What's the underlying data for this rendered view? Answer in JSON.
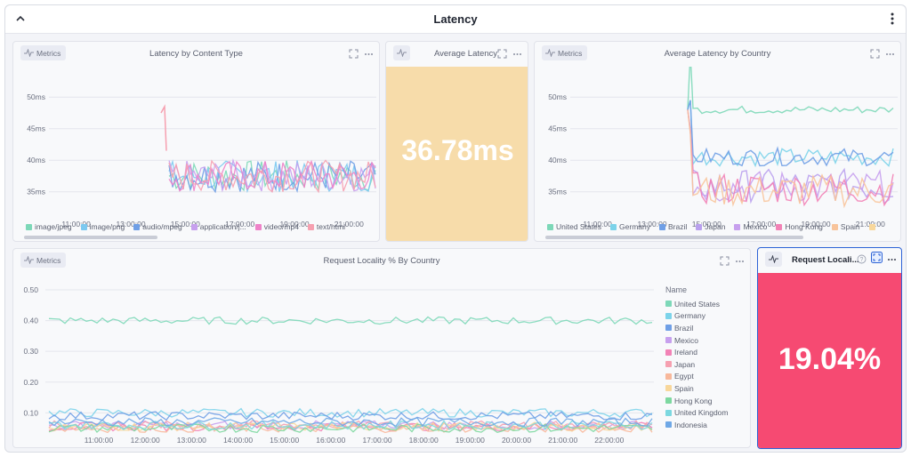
{
  "dashboard": {
    "title": "Latency"
  },
  "panels": {
    "content_type": {
      "badge": "Metrics",
      "title": "Latency by Content Type",
      "legend": [
        {
          "label": "image/jpeg",
          "color": "#7dd8b8"
        },
        {
          "label": "image/png",
          "color": "#7cc9f0"
        },
        {
          "label": "audio/mpeg",
          "color": "#6f9fe6"
        },
        {
          "label": "application/j...",
          "color": "#c7a0ee"
        },
        {
          "label": "video/mp4",
          "color": "#ee82c8"
        },
        {
          "label": "text/html",
          "color": "#f6a0b0"
        }
      ]
    },
    "avg_latency": {
      "title": "Average Latency",
      "value": "36.78ms",
      "bg": "#f7dcaa"
    },
    "by_country": {
      "badge": "Metrics",
      "title": "Average Latency by Country",
      "legend": [
        {
          "label": "United States",
          "color": "#7dd8b8"
        },
        {
          "label": "Germany",
          "color": "#7cd3ea"
        },
        {
          "label": "Brazil",
          "color": "#6f9fe6"
        },
        {
          "label": "Japan",
          "color": "#b9a0ee"
        },
        {
          "label": "Mexico",
          "color": "#c7a0ee"
        },
        {
          "label": "Hong Kong",
          "color": "#f282b6"
        },
        {
          "label": "Spain",
          "color": "#f8c49b"
        },
        {
          "label": "",
          "color": "#f8d79b"
        }
      ]
    },
    "locality": {
      "badge": "Metrics",
      "title": "Request Locality % By Country",
      "legend_title": "Name",
      "legend": [
        {
          "label": "United States",
          "color": "#7dd8b8"
        },
        {
          "label": "Germany",
          "color": "#7cd3ea"
        },
        {
          "label": "Brazil",
          "color": "#6f9fe6"
        },
        {
          "label": "Mexico",
          "color": "#c7a0ee"
        },
        {
          "label": "Ireland",
          "color": "#f282b6"
        },
        {
          "label": "Japan",
          "color": "#f6a0b0"
        },
        {
          "label": "Egypt",
          "color": "#f8b89b"
        },
        {
          "label": "Spain",
          "color": "#f8d79b"
        },
        {
          "label": "Hong Kong",
          "color": "#7dd8a0"
        },
        {
          "label": "United Kingdom",
          "color": "#7cd8e0"
        },
        {
          "label": "Indonesia",
          "color": "#6fa8e6"
        }
      ]
    },
    "locality_stat": {
      "title": "Request Locali...",
      "value": "19.04%",
      "bg": "#f64a72",
      "border": "#2d63d6"
    }
  },
  "chart_data": [
    {
      "type": "line",
      "title": "Latency by Content Type",
      "x": [
        "11:00:00",
        "13:00:00",
        "15:00:00",
        "17:00:00",
        "19:00:00",
        "21:00:00"
      ],
      "y_ticks": [
        "50ms",
        "45ms",
        "40ms",
        "35ms"
      ],
      "ylim": [
        30,
        50
      ],
      "series": [
        {
          "name": "image/jpeg",
          "range": [
            35,
            40
          ]
        },
        {
          "name": "image/png",
          "range": [
            35,
            40
          ]
        },
        {
          "name": "audio/mpeg",
          "range": [
            35,
            40
          ]
        },
        {
          "name": "application/j...",
          "range": [
            35,
            40
          ]
        },
        {
          "name": "video/mp4",
          "range": [
            35,
            40
          ]
        },
        {
          "name": "text/html",
          "range": [
            35,
            40
          ],
          "spike": 48.5
        }
      ]
    },
    {
      "type": "line",
      "title": "Average Latency by Country",
      "x": [
        "11:00:00",
        "13:00:00",
        "15:00:00",
        "17:00:00",
        "19:00:00",
        "21:00:00"
      ],
      "y_ticks": [
        "50ms",
        "45ms",
        "40ms",
        "35ms"
      ],
      "ylim": [
        30,
        50
      ],
      "series": [
        {
          "name": "United States",
          "level": 48
        },
        {
          "name": "Germany",
          "level": 40.5
        },
        {
          "name": "Brazil",
          "level": 40.5
        },
        {
          "name": "Japan",
          "level": 36
        },
        {
          "name": "Mexico",
          "level": 35.8
        },
        {
          "name": "Hong Kong",
          "level": 35.5
        },
        {
          "name": "Spain",
          "level": 35.2
        }
      ]
    },
    {
      "type": "line",
      "title": "Request Locality % By Country",
      "x": [
        "11:00:00",
        "12:00:00",
        "13:00:00",
        "14:00:00",
        "15:00:00",
        "16:00:00",
        "17:00:00",
        "18:00:00",
        "19:00:00",
        "20:00:00",
        "21:00:00",
        "22:00:00"
      ],
      "y_ticks": [
        "0.50",
        "0.40",
        "0.30",
        "0.20",
        "0.10"
      ],
      "ylim": [
        0.02,
        0.5
      ],
      "series": [
        {
          "name": "United States",
          "level": 0.4
        },
        {
          "name": "Germany",
          "level": 0.1
        },
        {
          "name": "Brazil",
          "level": 0.09
        },
        {
          "name": "Mexico",
          "level": 0.06
        },
        {
          "name": "Ireland",
          "level": 0.055
        },
        {
          "name": "Japan",
          "level": 0.06
        },
        {
          "name": "Egypt",
          "level": 0.05
        },
        {
          "name": "Spain",
          "level": 0.055
        },
        {
          "name": "Hong Kong",
          "level": 0.05
        },
        {
          "name": "United Kingdom",
          "level": 0.06
        },
        {
          "name": "Indonesia",
          "level": 0.07
        }
      ]
    }
  ]
}
